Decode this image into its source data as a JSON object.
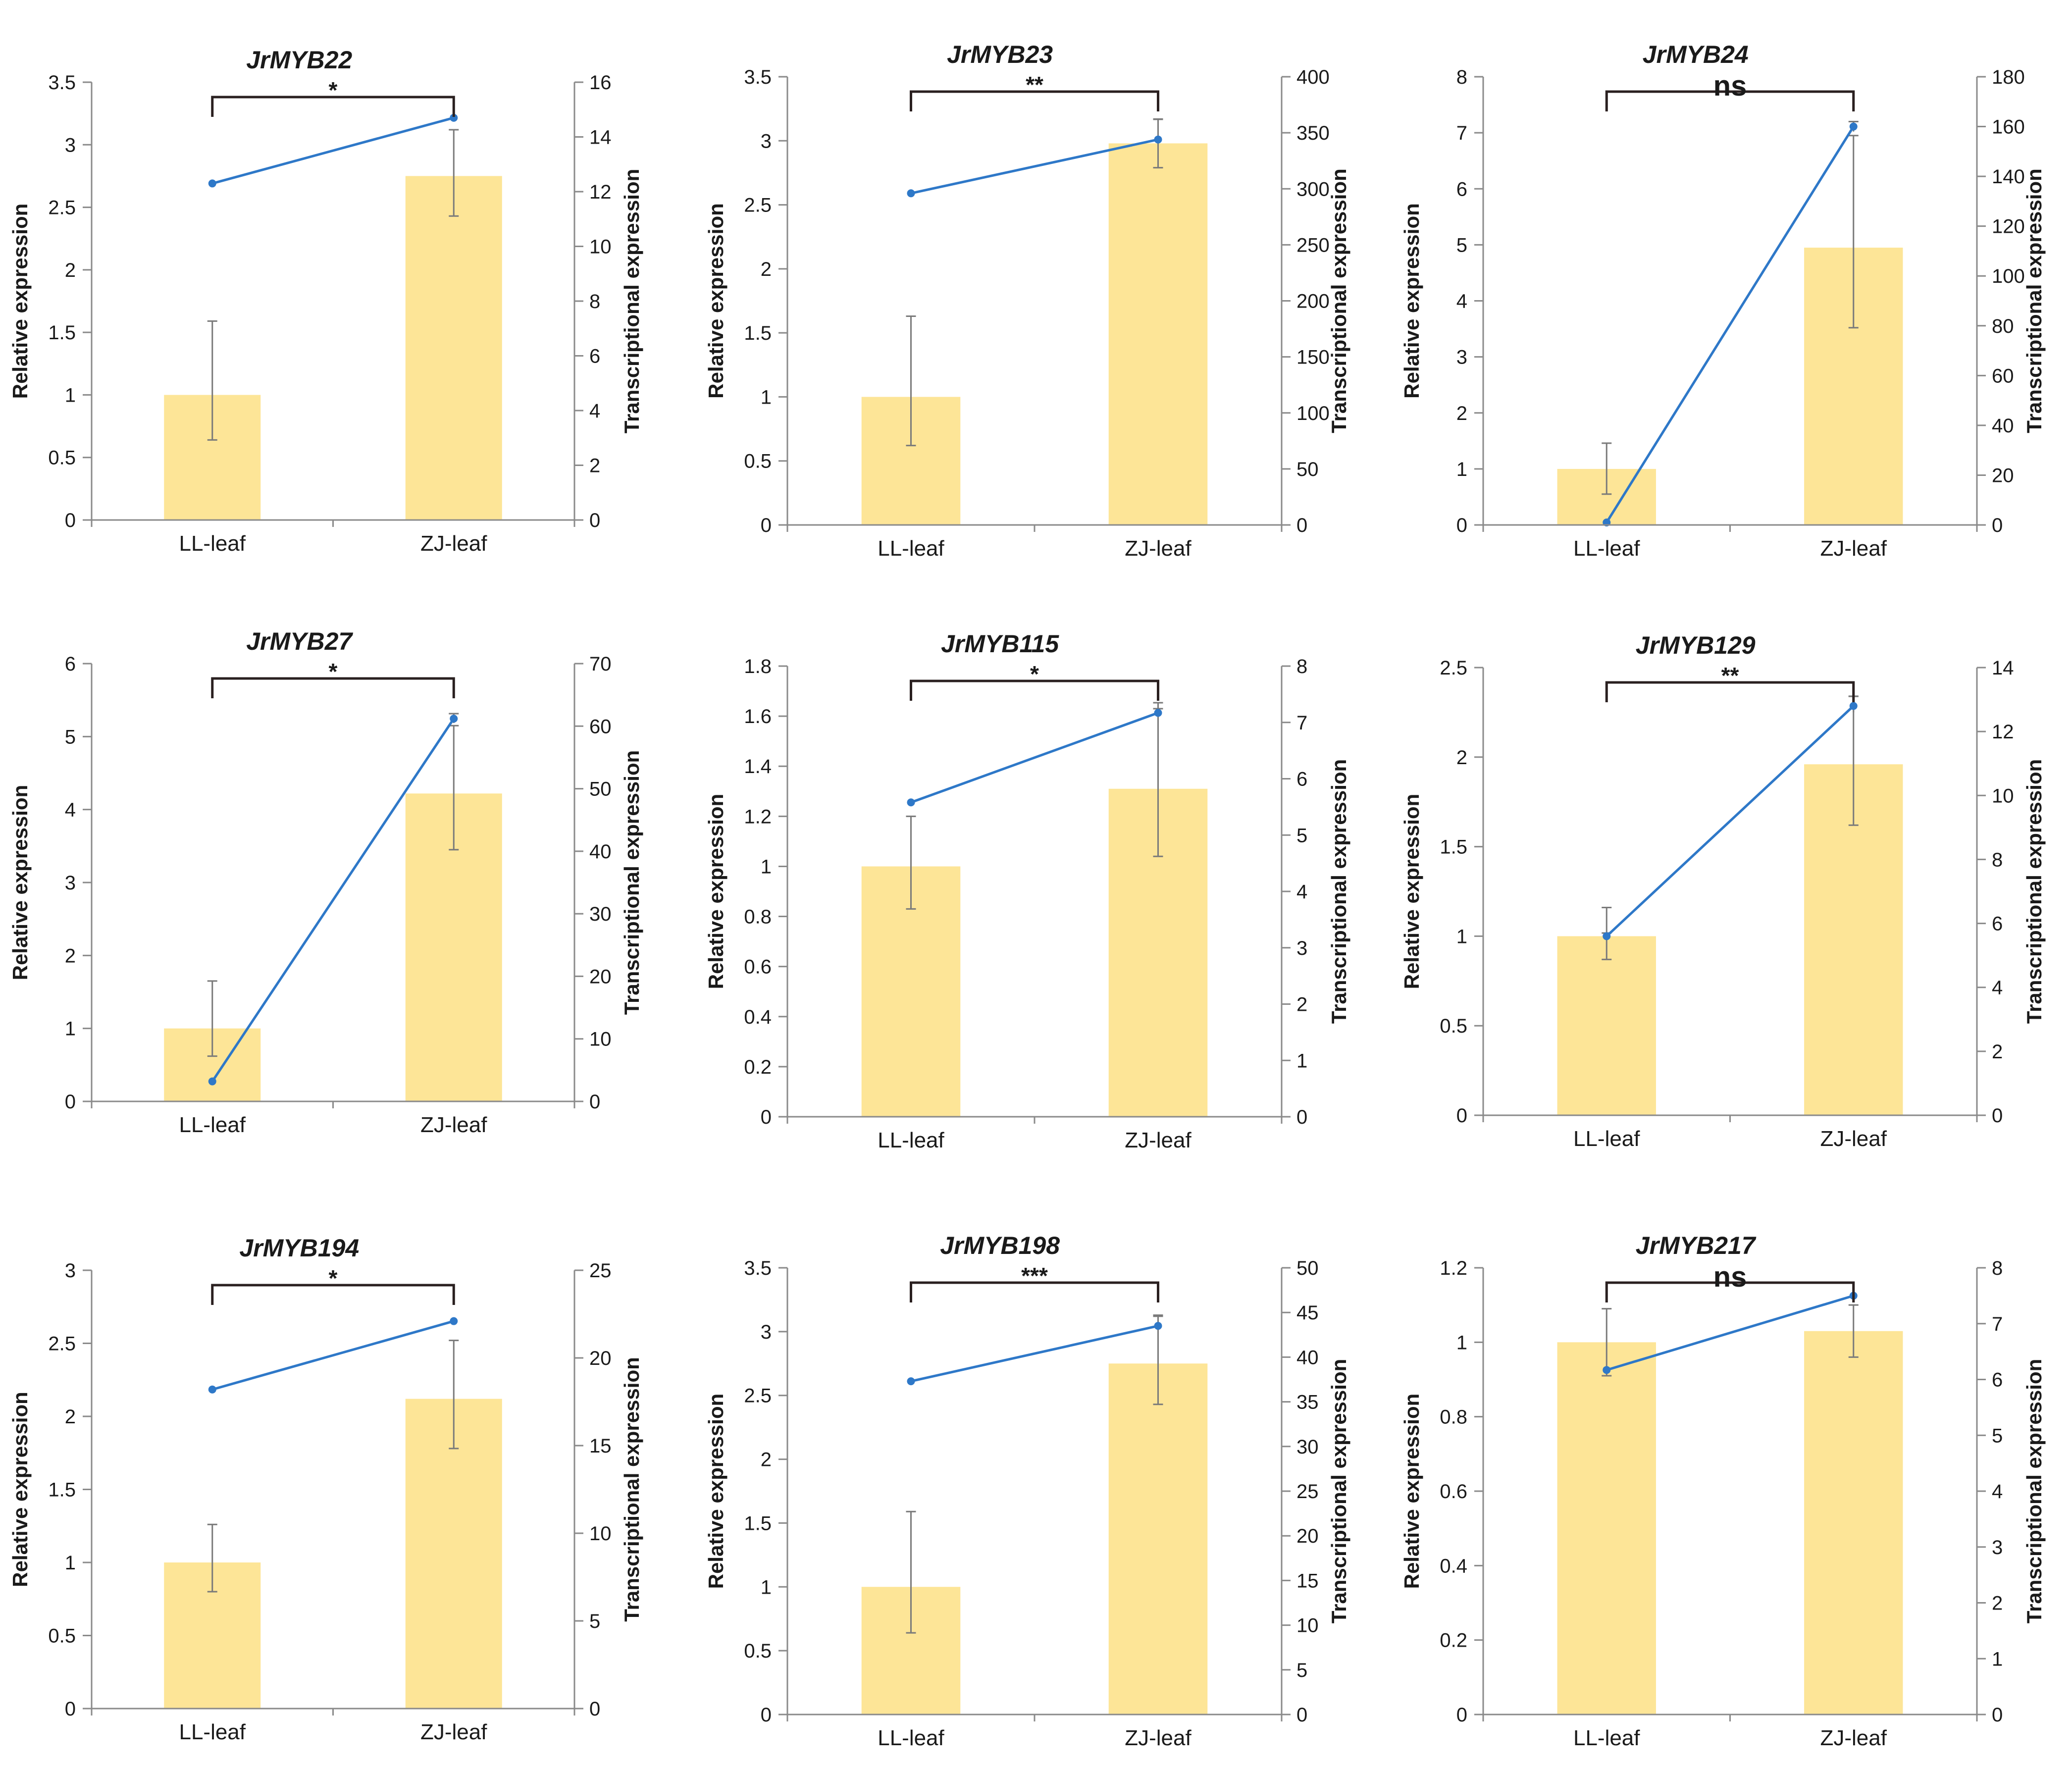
{
  "figure": {
    "description_units": "Relative expression (bars, left axis) and Transcriptional expression (line, right axis)"
  },
  "chart_data": [
    {
      "type": "bar+line",
      "title": "JrMYB22",
      "categories": [
        "LL-leaf",
        "ZJ-leaf"
      ],
      "ylabel": "Relative expression",
      "y2label": "Transcriptional expression",
      "ylim": [
        0,
        3.5
      ],
      "yticks": [
        0,
        0.5,
        1,
        1.5,
        2,
        2.5,
        3,
        3.5
      ],
      "y2lim": [
        0,
        16
      ],
      "y2ticks": [
        0,
        2,
        4,
        6,
        8,
        10,
        12,
        14,
        16
      ],
      "bars": {
        "name": "Relative expression",
        "values": [
          1.0,
          2.75
        ],
        "err_low": [
          0.64,
          2.43
        ],
        "err_high": [
          1.59,
          3.12
        ]
      },
      "line": {
        "name": "Transcriptional expression",
        "values": [
          12.3,
          14.7
        ],
        "err_low": [
          12.3,
          14.7
        ],
        "err_high": [
          12.3,
          14.7
        ]
      },
      "significance": "*"
    },
    {
      "type": "bar+line",
      "title": "JrMYB23",
      "categories": [
        "LL-leaf",
        "ZJ-leaf"
      ],
      "ylabel": "Relative expression",
      "y2label": "Transcriptional expression",
      "ylim": [
        0,
        3.5
      ],
      "yticks": [
        0,
        0.5,
        1,
        1.5,
        2,
        2.5,
        3,
        3.5
      ],
      "y2lim": [
        0,
        400
      ],
      "y2ticks": [
        0,
        50,
        100,
        150,
        200,
        250,
        300,
        350,
        400
      ],
      "bars": {
        "name": "Relative expression",
        "values": [
          1.0,
          2.98
        ],
        "err_low": [
          0.62,
          2.79
        ],
        "err_high": [
          1.63,
          3.17
        ]
      },
      "line": {
        "name": "Transcriptional expression",
        "values": [
          296,
          344
        ],
        "err_low": [
          296,
          334
        ],
        "err_high": [
          296,
          362
        ]
      },
      "significance": "**"
    },
    {
      "type": "bar+line",
      "title": "JrMYB24",
      "categories": [
        "LL-leaf",
        "ZJ-leaf"
      ],
      "ylabel": "Relative expression",
      "y2label": "Transcriptional expression",
      "ylim": [
        0,
        8
      ],
      "yticks": [
        0,
        1,
        2,
        3,
        4,
        5,
        6,
        7,
        8
      ],
      "y2lim": [
        0,
        180
      ],
      "y2ticks": [
        0,
        20,
        40,
        60,
        80,
        100,
        120,
        140,
        160,
        180
      ],
      "bars": {
        "name": "Relative expression",
        "values": [
          1.0,
          4.95
        ],
        "err_low": [
          0.55,
          3.52
        ],
        "err_high": [
          1.46,
          6.95
        ]
      },
      "line": {
        "name": "Transcriptional expression",
        "values": [
          1,
          160
        ],
        "err_low": [
          1,
          158
        ],
        "err_high": [
          1,
          162
        ]
      },
      "significance": "ns"
    },
    {
      "type": "bar+line",
      "title": "JrMYB27",
      "categories": [
        "LL-leaf",
        "ZJ-leaf"
      ],
      "ylabel": "Relative expression",
      "y2label": "Transcriptional expression",
      "ylim": [
        0,
        6
      ],
      "yticks": [
        0,
        1,
        2,
        3,
        4,
        5,
        6
      ],
      "y2lim": [
        0,
        70
      ],
      "y2ticks": [
        0,
        10,
        20,
        30,
        40,
        50,
        60,
        70
      ],
      "bars": {
        "name": "Relative expression",
        "values": [
          1.0,
          4.22
        ],
        "err_low": [
          0.62,
          3.45
        ],
        "err_high": [
          1.65,
          5.15
        ]
      },
      "line": {
        "name": "Transcriptional expression",
        "values": [
          3.2,
          61.2
        ],
        "err_low": [
          3.2,
          60.5
        ],
        "err_high": [
          3.2,
          62.0
        ]
      },
      "significance": "*"
    },
    {
      "type": "bar+line",
      "title": "JrMYB115",
      "categories": [
        "LL-leaf",
        "ZJ-leaf"
      ],
      "ylabel": "Relative expression",
      "y2label": "Transcriptional expression",
      "ylim": [
        0,
        1.8
      ],
      "yticks": [
        0,
        0.2,
        0.4,
        0.6,
        0.8,
        1,
        1.2,
        1.4,
        1.6,
        1.8
      ],
      "y2lim": [
        0,
        8
      ],
      "y2ticks": [
        0,
        1,
        2,
        3,
        4,
        5,
        6,
        7,
        8
      ],
      "bars": {
        "name": "Relative expression",
        "values": [
          1.0,
          1.31
        ],
        "err_low": [
          0.83,
          1.04
        ],
        "err_high": [
          1.2,
          1.63
        ]
      },
      "line": {
        "name": "Transcriptional expression",
        "values": [
          5.58,
          7.17
        ],
        "err_low": [
          5.58,
          6.9
        ],
        "err_high": [
          5.58,
          7.35
        ]
      },
      "significance": "*"
    },
    {
      "type": "bar+line",
      "title": "JrMYB129",
      "categories": [
        "LL-leaf",
        "ZJ-leaf"
      ],
      "ylabel": "Relative expression",
      "y2label": "Transcriptional expression",
      "ylim": [
        0,
        2.5
      ],
      "yticks": [
        0,
        0.5,
        1,
        1.5,
        2,
        2.5
      ],
      "y2lim": [
        0,
        14
      ],
      "y2ticks": [
        0,
        2,
        4,
        6,
        8,
        10,
        12,
        14
      ],
      "bars": {
        "name": "Relative expression",
        "values": [
          1.0,
          1.96
        ],
        "err_low": [
          0.87,
          1.62
        ],
        "err_high": [
          1.16,
          2.34
        ]
      },
      "line": {
        "name": "Transcriptional expression",
        "values": [
          5.6,
          12.8
        ],
        "err_low": [
          5.5,
          12.6
        ],
        "err_high": [
          5.7,
          13.1
        ]
      },
      "significance": "**"
    },
    {
      "type": "bar+line",
      "title": "JrMYB194",
      "categories": [
        "LL-leaf",
        "ZJ-leaf"
      ],
      "ylabel": "Relative expression",
      "y2label": "Transcriptional expression",
      "ylim": [
        0,
        3
      ],
      "yticks": [
        0,
        0.5,
        1,
        1.5,
        2,
        2.5,
        3
      ],
      "y2lim": [
        0,
        25
      ],
      "y2ticks": [
        0,
        5,
        10,
        15,
        20,
        25
      ],
      "bars": {
        "name": "Relative expression",
        "values": [
          1.0,
          2.12
        ],
        "err_low": [
          0.8,
          1.78
        ],
        "err_high": [
          1.26,
          2.52
        ]
      },
      "line": {
        "name": "Transcriptional expression",
        "values": [
          18.2,
          22.1
        ],
        "err_low": [
          18.2,
          22.1
        ],
        "err_high": [
          18.2,
          22.1
        ]
      },
      "significance": "*"
    },
    {
      "type": "bar+line",
      "title": "JrMYB198",
      "categories": [
        "LL-leaf",
        "ZJ-leaf"
      ],
      "ylabel": "Relative expression",
      "y2label": "Transcriptional expression",
      "ylim": [
        0,
        3.5
      ],
      "yticks": [
        0,
        0.5,
        1,
        1.5,
        2,
        2.5,
        3,
        3.5
      ],
      "y2lim": [
        0,
        50
      ],
      "y2ticks": [
        0,
        5,
        10,
        15,
        20,
        25,
        30,
        35,
        40,
        45,
        50
      ],
      "bars": {
        "name": "Relative expression",
        "values": [
          1.0,
          2.75
        ],
        "err_low": [
          0.64,
          2.43
        ],
        "err_high": [
          1.59,
          3.12
        ]
      },
      "line": {
        "name": "Transcriptional expression",
        "values": [
          37.3,
          43.5
        ],
        "err_low": [
          37.3,
          42.5
        ],
        "err_high": [
          37.3,
          44.7
        ]
      },
      "significance": "***"
    },
    {
      "type": "bar+line",
      "title": "JrMYB217",
      "categories": [
        "LL-leaf",
        "ZJ-leaf"
      ],
      "ylabel": "Relative expression",
      "y2label": "Transcriptional expression",
      "ylim": [
        0,
        1.2
      ],
      "yticks": [
        0,
        0.2,
        0.4,
        0.6,
        0.8,
        1,
        1.2
      ],
      "y2lim": [
        0,
        8
      ],
      "y2ticks": [
        0,
        1,
        2,
        3,
        4,
        5,
        6,
        7,
        8
      ],
      "bars": {
        "name": "Relative expression",
        "values": [
          1.0,
          1.03
        ],
        "err_low": [
          0.91,
          0.96
        ],
        "err_high": [
          1.09,
          1.1
        ]
      },
      "line": {
        "name": "Transcriptional expression",
        "values": [
          6.17,
          7.5
        ],
        "err_low": [
          6.17,
          7.5
        ],
        "err_high": [
          6.17,
          7.5
        ]
      },
      "significance": "ns"
    }
  ],
  "colors": {
    "bar": "#fde597",
    "line": "#2e78c8",
    "axis": "#8a8a8a",
    "error_bar": "#7a7a7a",
    "bracket": "#2a2020",
    "text": "#1a1a1a"
  }
}
